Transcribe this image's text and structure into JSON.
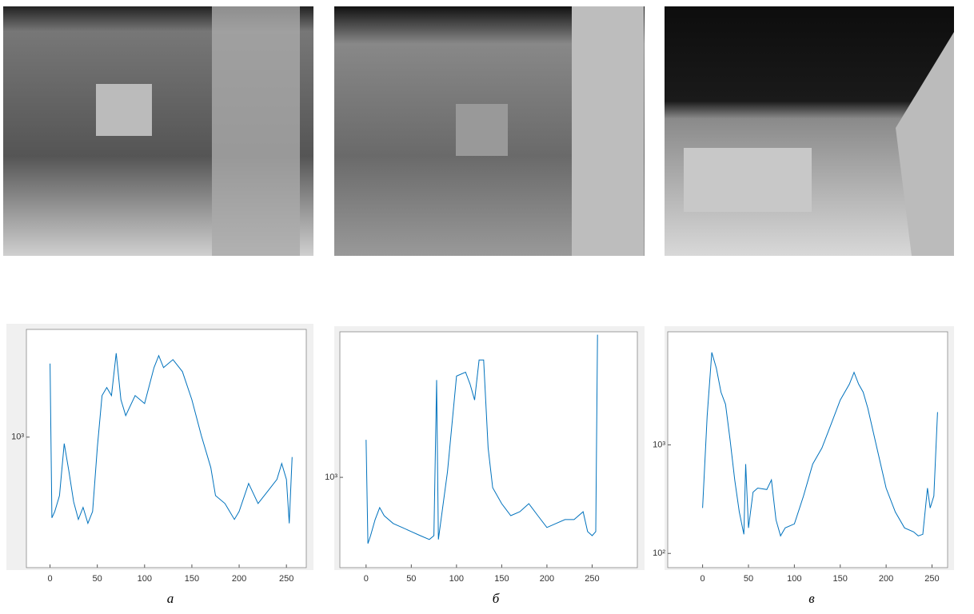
{
  "chart_data": [
    {
      "type": "line",
      "log_y": true,
      "grid": false,
      "color": "#0072bd",
      "caption": "а",
      "xlim": [
        -25,
        271
      ],
      "ylim": [
        63,
        9800
      ],
      "xticks": [
        0,
        50,
        100,
        150,
        200,
        250
      ],
      "yticks": [
        {
          "value": 1000,
          "label": "10³"
        }
      ],
      "x": [
        0,
        2,
        5,
        10,
        15,
        20,
        25,
        30,
        35,
        40,
        45,
        50,
        55,
        60,
        65,
        70,
        75,
        80,
        90,
        100,
        110,
        115,
        120,
        130,
        140,
        150,
        160,
        170,
        175,
        185,
        195,
        200,
        210,
        220,
        230,
        240,
        245,
        250,
        253,
        256
      ],
      "values": [
        4750,
        181,
        207,
        290,
        873,
        483,
        254,
        175,
        226,
        161,
        207,
        802,
        2410,
        2860,
        2410,
        5920,
        2210,
        1580,
        2410,
        2040,
        4360,
        5620,
        4360,
        5170,
        4010,
        2210,
        1030,
        525,
        290,
        245,
        175,
        207,
        375,
        245,
        316,
        408,
        572,
        408,
        161,
        655
      ]
    },
    {
      "type": "line",
      "log_y": true,
      "grid": false,
      "color": "#0072bd",
      "caption": "б",
      "xlim": [
        -29,
        300
      ],
      "ylim": [
        147,
        22000
      ],
      "xticks": [
        0,
        50,
        100,
        150,
        200,
        250
      ],
      "yticks": [
        {
          "value": 1000,
          "label": "10³"
        }
      ],
      "x": [
        0,
        2,
        5,
        10,
        15,
        20,
        30,
        40,
        50,
        60,
        70,
        75,
        78,
        80,
        90,
        100,
        110,
        115,
        120,
        125,
        130,
        135,
        140,
        150,
        160,
        170,
        180,
        190,
        200,
        210,
        220,
        230,
        240,
        245,
        250,
        254,
        256
      ],
      "values": [
        2220,
        245,
        290,
        408,
        526,
        443,
        375,
        345,
        316,
        290,
        267,
        290,
        7890,
        267,
        1130,
        8590,
        9340,
        7250,
        5170,
        12080,
        12080,
        1870,
        803,
        572,
        443,
        482,
        572,
        443,
        345,
        375,
        408,
        408,
        482,
        316,
        290,
        316,
        20700
      ]
    },
    {
      "type": "line",
      "log_y": true,
      "grid": false,
      "color": "#0072bd",
      "caption": "в",
      "xlim": [
        -38,
        267
      ],
      "ylim": [
        74,
        11000
      ],
      "xticks": [
        0,
        50,
        100,
        150,
        200,
        250
      ],
      "yticks": [
        {
          "value": 100,
          "label": "10²"
        },
        {
          "value": 1000,
          "label": "10³"
        }
      ],
      "x": [
        0,
        5,
        10,
        15,
        20,
        25,
        30,
        35,
        40,
        45,
        47,
        50,
        55,
        60,
        70,
        75,
        80,
        85,
        90,
        100,
        110,
        120,
        130,
        140,
        150,
        160,
        165,
        170,
        175,
        180,
        190,
        200,
        210,
        220,
        230,
        235,
        240,
        245,
        248,
        252,
        256
      ],
      "values": [
        262,
        1840,
        7100,
        5090,
        3060,
        2360,
        1110,
        475,
        241,
        150,
        665,
        172,
        367,
        400,
        388,
        475,
        204,
        145,
        172,
        187,
        338,
        665,
        935,
        1550,
        2580,
        3630,
        4660,
        3630,
        3060,
        2180,
        935,
        400,
        241,
        172,
        158,
        145,
        150,
        400,
        262,
        338,
        2000
      ]
    }
  ]
}
